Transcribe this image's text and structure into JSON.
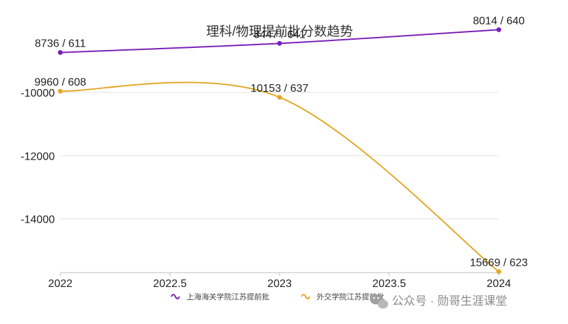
{
  "chart_data": {
    "type": "line",
    "title": "理科/物理提前批分数趋势",
    "xlabel": "",
    "ylabel": "",
    "xlim": [
      2022,
      2024
    ],
    "ylim": [
      -15700,
      -8700
    ],
    "x_ticks": [
      "2022",
      "2022.5",
      "2023",
      "2023.5",
      "2024"
    ],
    "y_ticks": [
      "-10000",
      "-12000",
      "-14000"
    ],
    "grid": "horizontal",
    "legend_position": "bottom-center",
    "series": [
      {
        "name": "上海海关学院江苏提前批",
        "color": "#7b1fb8",
        "x": [
          2022,
          2023,
          2024
        ],
        "values": [
          -8736,
          -8447,
          -8014
        ],
        "labels": [
          "8736 / 611",
          "8447 / 641",
          "8014 / 640"
        ]
      },
      {
        "name": "外交学院江苏提前批",
        "color": "#e3a826",
        "x": [
          2022,
          2023,
          2024
        ],
        "values": [
          -9960,
          -10153,
          -15669
        ],
        "labels": [
          "9960 / 608",
          "10153 / 637",
          "15669 / 623"
        ]
      }
    ]
  },
  "watermark": "公众号 · 勋哥生涯课堂"
}
